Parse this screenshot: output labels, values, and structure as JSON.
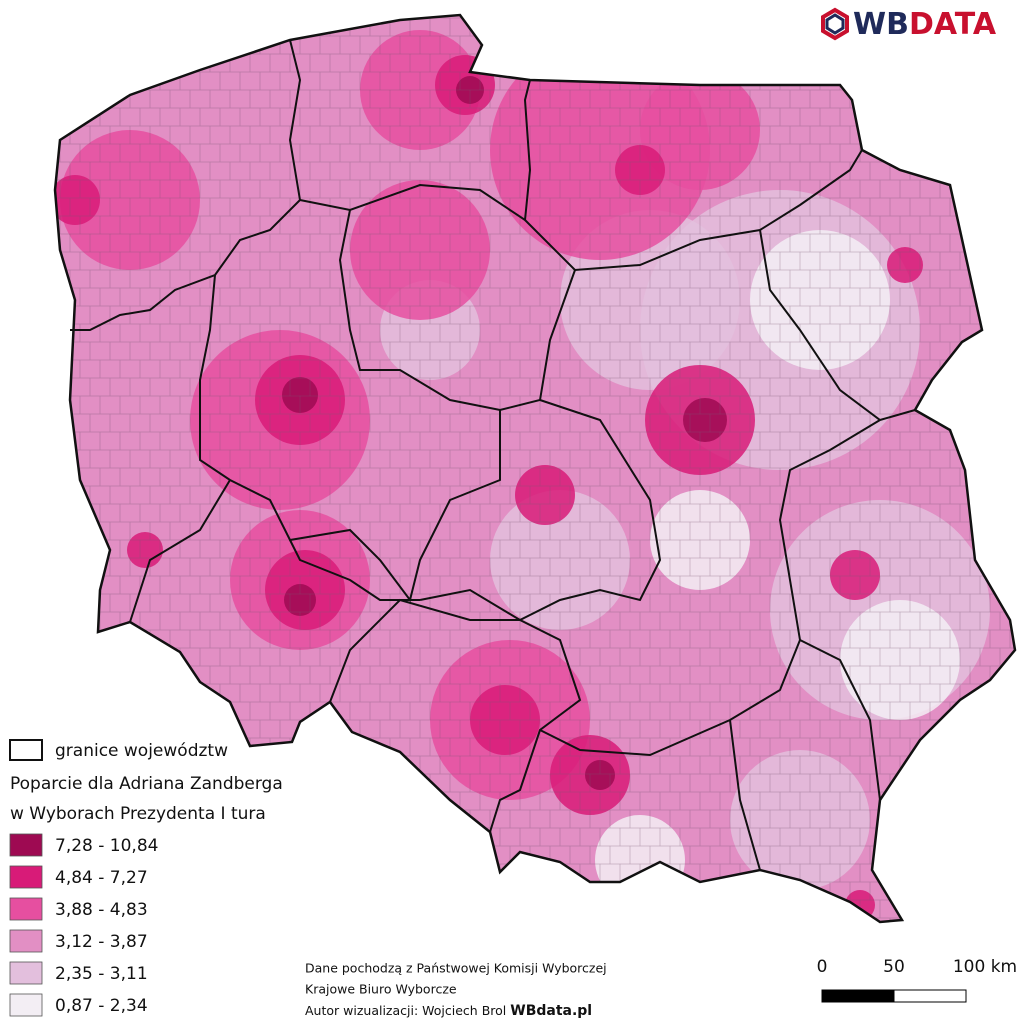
{
  "logo": {
    "prefix": "WB",
    "suffix": "DATA"
  },
  "legend": {
    "boundary_label": "granice województw",
    "title_lines": [
      "Poparcie dla Adriana Zandberga",
      "w Wyborach Prezydenta I tura"
    ],
    "classes": [
      {
        "label": "7,28 - 10,84",
        "color": "#9e0a52"
      },
      {
        "label": "4,84 - 7,27",
        "color": "#d81b78"
      },
      {
        "label": "3,88 - 4,83",
        "color": "#e64fa0"
      },
      {
        "label": "3,12 - 3,87",
        "color": "#e28fc4"
      },
      {
        "label": "2,35 - 3,11",
        "color": "#e3bfdd"
      },
      {
        "label": "0,87 - 2,34",
        "color": "#f3eef4"
      }
    ]
  },
  "scale_bar": {
    "labels": [
      "0",
      "50",
      "100 km"
    ]
  },
  "source": {
    "lines": [
      "Dane pochodzą z Państwowej Komisji Wyborczej",
      "Krajowe Biuro Wyborcze"
    ],
    "author": "Autor wizualizacji: Wojciech Brol",
    "site": "WBdata.pl"
  }
}
